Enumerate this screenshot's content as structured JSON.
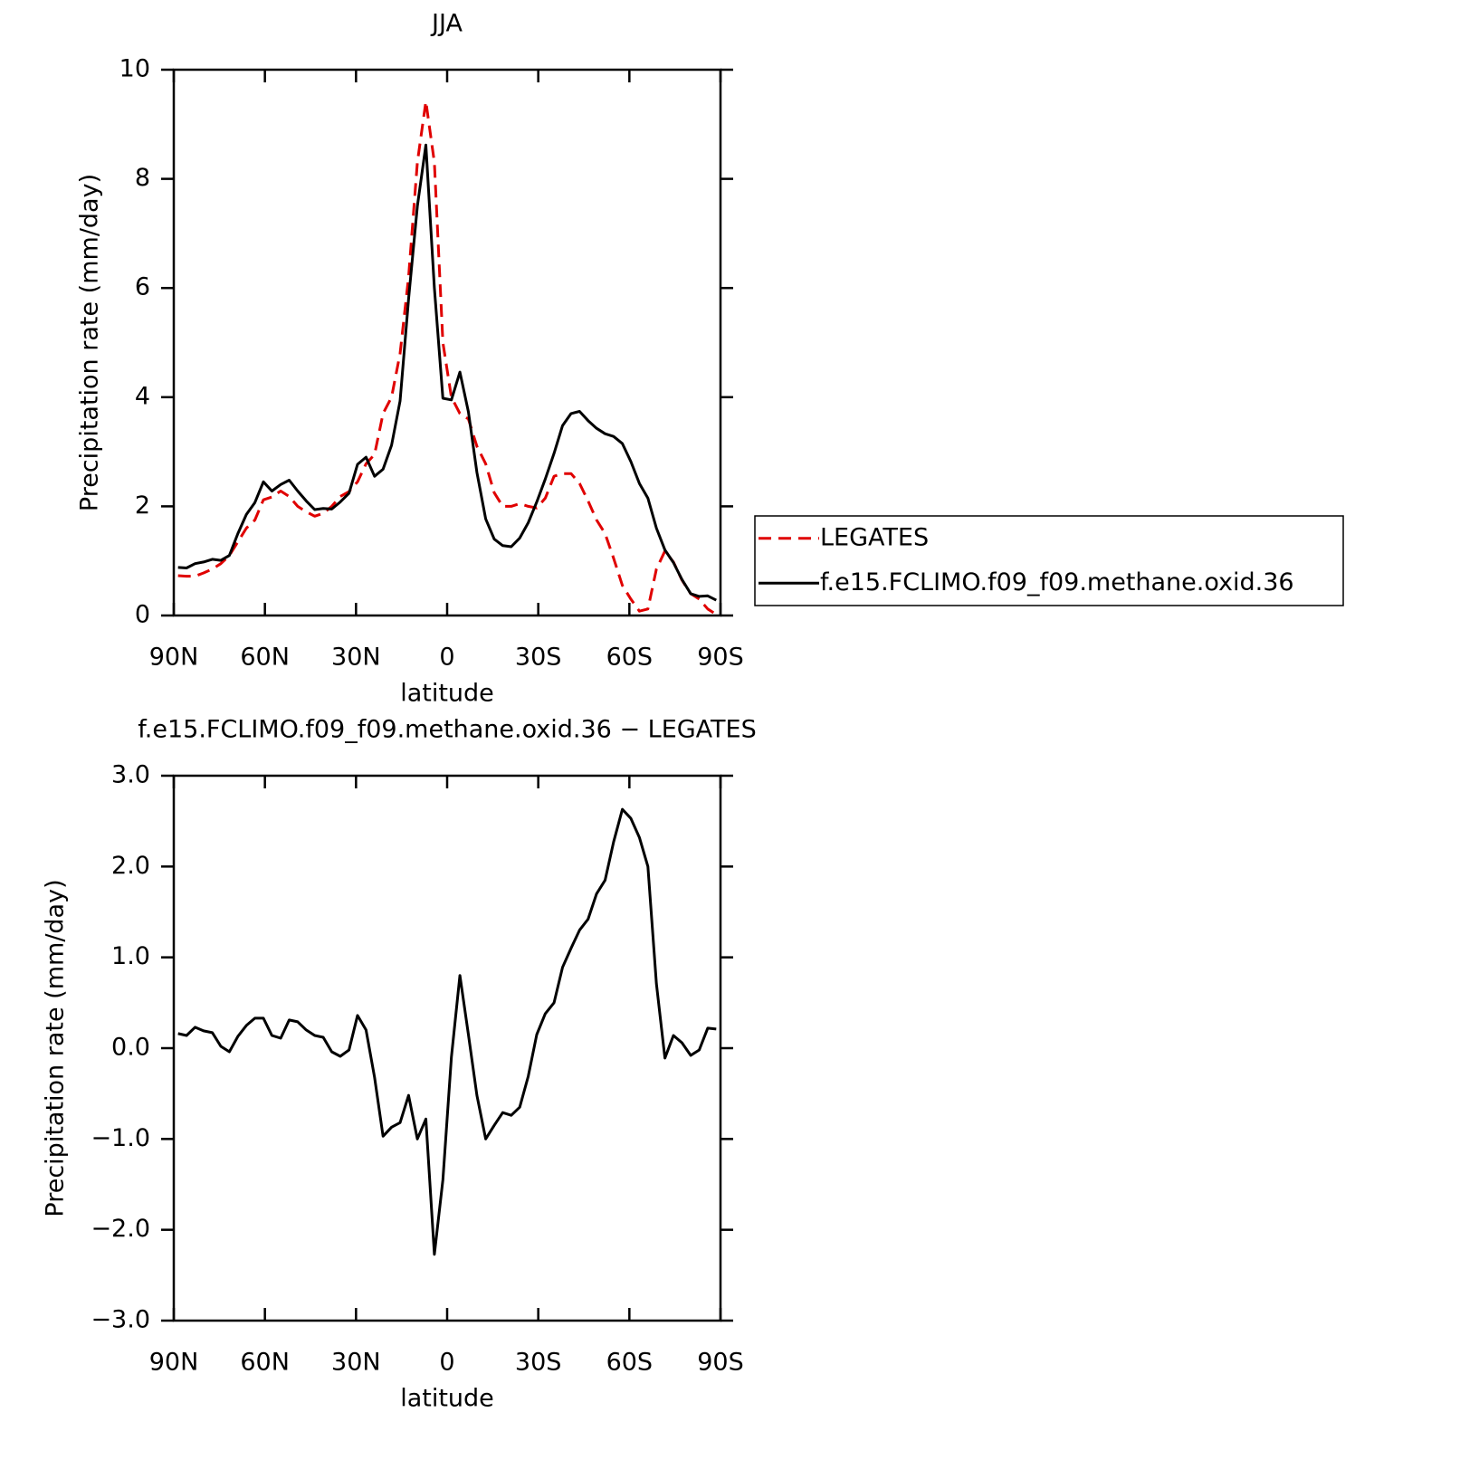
{
  "chart_data": [
    {
      "type": "line",
      "title": "JJA",
      "x_label": "latitude",
      "y_label": "Precipitation rate (mm/day)",
      "x": [
        88.6,
        85.8,
        83.0,
        80.2,
        77.3,
        74.5,
        71.7,
        68.9,
        66.1,
        63.3,
        60.5,
        57.7,
        54.8,
        52.0,
        49.2,
        46.4,
        43.6,
        40.8,
        38.0,
        35.2,
        32.3,
        29.5,
        26.7,
        23.9,
        21.1,
        18.3,
        15.5,
        12.7,
        9.8,
        7.0,
        4.2,
        1.4,
        -1.4,
        -4.2,
        -7.0,
        -9.8,
        -12.7,
        -15.5,
        -18.3,
        -21.1,
        -23.9,
        -26.7,
        -29.5,
        -32.3,
        -35.2,
        -38.0,
        -40.8,
        -43.6,
        -46.4,
        -49.2,
        -52.0,
        -54.8,
        -57.7,
        -60.5,
        -63.3,
        -66.1,
        -68.9,
        -71.7,
        -74.5,
        -77.3,
        -80.2,
        -83.0,
        -85.8,
        -88.6
      ],
      "series": [
        {
          "name": "LEGATES",
          "color": "#e00000",
          "line_style": "dashed",
          "values": [
            0.73,
            0.72,
            0.72,
            0.78,
            0.85,
            0.95,
            1.1,
            1.35,
            1.6,
            1.75,
            2.12,
            2.17,
            2.28,
            2.18,
            2.0,
            1.9,
            1.82,
            1.87,
            2.0,
            2.18,
            2.27,
            2.45,
            2.78,
            2.95,
            3.7,
            4.0,
            4.8,
            6.2,
            8.3,
            9.42,
            8.3,
            5.0,
            4.0,
            3.7,
            3.6,
            3.1,
            2.78,
            2.25,
            2.0,
            2.0,
            2.05,
            2.0,
            1.97,
            2.15,
            2.55,
            2.6,
            2.6,
            2.42,
            2.1,
            1.75,
            1.5,
            1.05,
            0.55,
            0.3,
            0.08,
            0.12,
            0.85,
            1.18,
            0.98,
            0.65,
            0.4,
            0.3,
            0.12,
            0.02
          ]
        },
        {
          "name": "f.e15.FCLIMO.f09_f09.methane.oxid.36",
          "color": "#000000",
          "line_style": "solid",
          "values": [
            0.88,
            0.87,
            0.95,
            0.98,
            1.03,
            1.01,
            1.1,
            1.5,
            1.85,
            2.07,
            2.45,
            2.28,
            2.4,
            2.48,
            2.28,
            2.1,
            1.94,
            1.96,
            1.95,
            2.08,
            2.24,
            2.77,
            2.9,
            2.55,
            2.68,
            3.12,
            3.93,
            5.8,
            7.5,
            8.62,
            6.0,
            3.98,
            3.95,
            4.46,
            3.73,
            2.62,
            1.77,
            1.4,
            1.28,
            1.26,
            1.42,
            1.7,
            2.08,
            2.5,
            2.97,
            3.48,
            3.7,
            3.74,
            3.57,
            3.43,
            3.33,
            3.28,
            3.15,
            2.82,
            2.42,
            2.15,
            1.6,
            1.2,
            0.97,
            0.66,
            0.4,
            0.35,
            0.36,
            0.28
          ]
        }
      ],
      "xlim": [
        90,
        -90
      ],
      "xticks": [
        {
          "value": 90,
          "label": "90N"
        },
        {
          "value": 60,
          "label": "60N"
        },
        {
          "value": 30,
          "label": "30N"
        },
        0,
        {
          "value": -30,
          "label": "30S"
        },
        {
          "value": -60,
          "label": "60S"
        },
        {
          "value": -90,
          "label": "90S"
        }
      ],
      "ylim": [
        0,
        10
      ],
      "yticks": [
        0,
        2,
        4,
        6,
        8,
        10
      ],
      "legend": "right",
      "grid": false
    },
    {
      "type": "line",
      "title": "f.e15.FCLIMO.f09_f09.methane.oxid.36 − LEGATES",
      "x_label": "latitude",
      "y_label": "Precipitation rate (mm/day)",
      "x": [
        88.6,
        85.8,
        83.0,
        80.2,
        77.3,
        74.5,
        71.7,
        68.9,
        66.1,
        63.3,
        60.5,
        57.7,
        54.8,
        52.0,
        49.2,
        46.4,
        43.6,
        40.8,
        38.0,
        35.2,
        32.3,
        29.5,
        26.7,
        23.9,
        21.1,
        18.3,
        15.5,
        12.7,
        9.8,
        7.0,
        4.2,
        1.4,
        -1.4,
        -4.2,
        -7.0,
        -9.8,
        -12.7,
        -15.5,
        -18.3,
        -21.1,
        -23.9,
        -26.7,
        -29.5,
        -32.3,
        -35.2,
        -38.0,
        -40.8,
        -43.6,
        -46.4,
        -49.2,
        -52.0,
        -54.8,
        -57.7,
        -60.5,
        -63.3,
        -66.1,
        -68.9,
        -71.7,
        -74.5,
        -77.3,
        -80.2,
        -83.0,
        -85.8,
        -88.6
      ],
      "color": "#000000",
      "values": [
        0.16,
        0.14,
        0.23,
        0.19,
        0.17,
        0.02,
        -0.04,
        0.13,
        0.25,
        0.33,
        0.33,
        0.14,
        0.11,
        0.31,
        0.29,
        0.2,
        0.14,
        0.12,
        -0.04,
        -0.09,
        -0.02,
        0.36,
        0.2,
        -0.32,
        -0.97,
        -0.87,
        -0.82,
        -0.52,
        -1.0,
        -0.78,
        -2.27,
        -1.45,
        -0.1,
        0.8,
        0.15,
        -0.52,
        -1.0,
        -0.85,
        -0.71,
        -0.74,
        -0.65,
        -0.31,
        0.15,
        0.38,
        0.5,
        0.89,
        1.1,
        1.3,
        1.42,
        1.7,
        1.85,
        2.27,
        2.63,
        2.53,
        2.32,
        2.0,
        0.71,
        -0.11,
        0.14,
        0.06,
        -0.08,
        -0.02,
        0.22,
        0.21
      ],
      "xlim": [
        90,
        -90
      ],
      "xticks": [
        {
          "value": 90,
          "label": "90N"
        },
        {
          "value": 60,
          "label": "60N"
        },
        {
          "value": 30,
          "label": "30N"
        },
        0,
        {
          "value": -30,
          "label": "30S"
        },
        {
          "value": -60,
          "label": "60S"
        },
        {
          "value": -90,
          "label": "90S"
        }
      ],
      "ylim": [
        -3,
        3
      ],
      "yticks": [
        {
          "value": -3,
          "label": "−3.0"
        },
        {
          "value": -2,
          "label": "−2.0"
        },
        {
          "value": -1,
          "label": "−1.0"
        },
        {
          "value": 0,
          "label": "0.0"
        },
        {
          "value": 1,
          "label": "1.0"
        },
        {
          "value": 2,
          "label": "2.0"
        },
        {
          "value": 3,
          "label": "3.0"
        }
      ],
      "grid": false
    }
  ]
}
